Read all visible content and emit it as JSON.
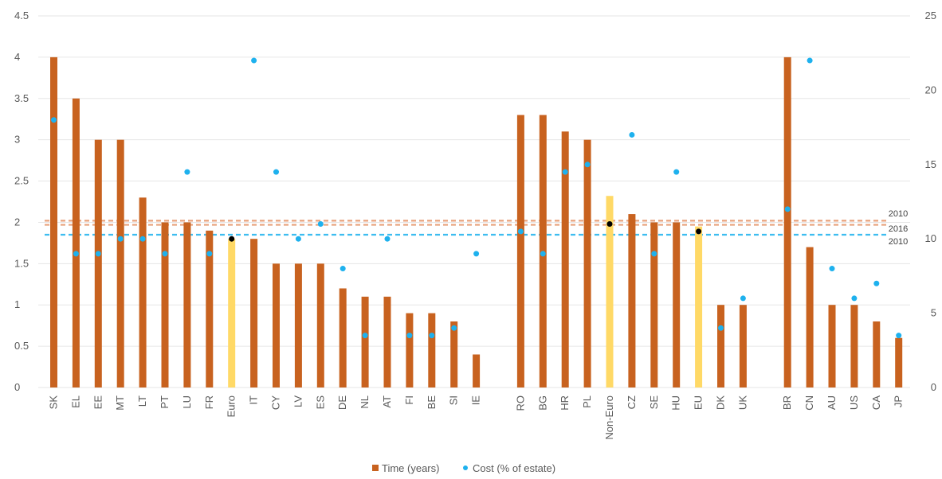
{
  "chart_data": {
    "type": "bar",
    "categories": [
      "SK",
      "EL",
      "EE",
      "MT",
      "LT",
      "PT",
      "LU",
      "FR",
      "Euro",
      "IT",
      "CY",
      "LV",
      "ES",
      "DE",
      "NL",
      "AT",
      "FI",
      "BE",
      "SI",
      "IE",
      "",
      "RO",
      "BG",
      "HR",
      "PL",
      "Non-Euro",
      "CZ",
      "SE",
      "HU",
      "EU",
      "DK",
      "UK",
      "",
      "BR",
      "CN",
      "AU",
      "US",
      "CA",
      "JP"
    ],
    "series": [
      {
        "name": "Time (years)",
        "axis": "left",
        "values": [
          4,
          3.5,
          3,
          3,
          2.3,
          2,
          2,
          1.9,
          1.8,
          1.8,
          1.5,
          1.5,
          1.5,
          1.2,
          1.1,
          1.1,
          0.9,
          0.9,
          0.8,
          0.4,
          null,
          3.3,
          3.3,
          3.1,
          3,
          2.32,
          2.1,
          2,
          2,
          1.95,
          1,
          1,
          null,
          4,
          1.7,
          1,
          1,
          0.8,
          0.6
        ]
      },
      {
        "name": "Cost (% of estate)",
        "axis": "right",
        "values": [
          18,
          9,
          9,
          10,
          10,
          9,
          14.5,
          9,
          10,
          22,
          14.5,
          10,
          11,
          8,
          3.5,
          10,
          3.5,
          3.5,
          4,
          9,
          null,
          10.5,
          9,
          14.5,
          15,
          11,
          17,
          9,
          14.5,
          10.5,
          4,
          6,
          null,
          12,
          22,
          8,
          6,
          7,
          3.5
        ]
      }
    ],
    "highlight_categories": [
      "Euro",
      "Non-Euro",
      "EU"
    ],
    "reference_lines": [
      {
        "label": "2010",
        "axis": "left",
        "value": 2.02,
        "color": "#E8A27C"
      },
      {
        "label": "2016",
        "axis": "left",
        "value": 1.97,
        "color": "#E8A27C"
      },
      {
        "label": "2010",
        "axis": "left",
        "value": 1.85,
        "color": "#3EBDF0"
      }
    ],
    "y_left": {
      "min": 0,
      "max": 4.5,
      "ticks": [
        "0",
        "0.5",
        "1",
        "1.5",
        "2",
        "2.5",
        "3",
        "3.5",
        "4",
        "4.5"
      ]
    },
    "y_right": {
      "min": 0,
      "max": 25,
      "ticks": [
        "0",
        "5",
        "10",
        "15",
        "20",
        "25"
      ]
    },
    "grid": true,
    "legend": {
      "position": "bottom",
      "items": [
        "Time (years)",
        "Cost (% of estate)"
      ]
    },
    "colors": {
      "bar": "#C8621F",
      "bar_highlight": "#FFD966",
      "dot": "#1EB1EE",
      "dot_highlight": "#000000",
      "grid": "#E6E6E6"
    }
  }
}
